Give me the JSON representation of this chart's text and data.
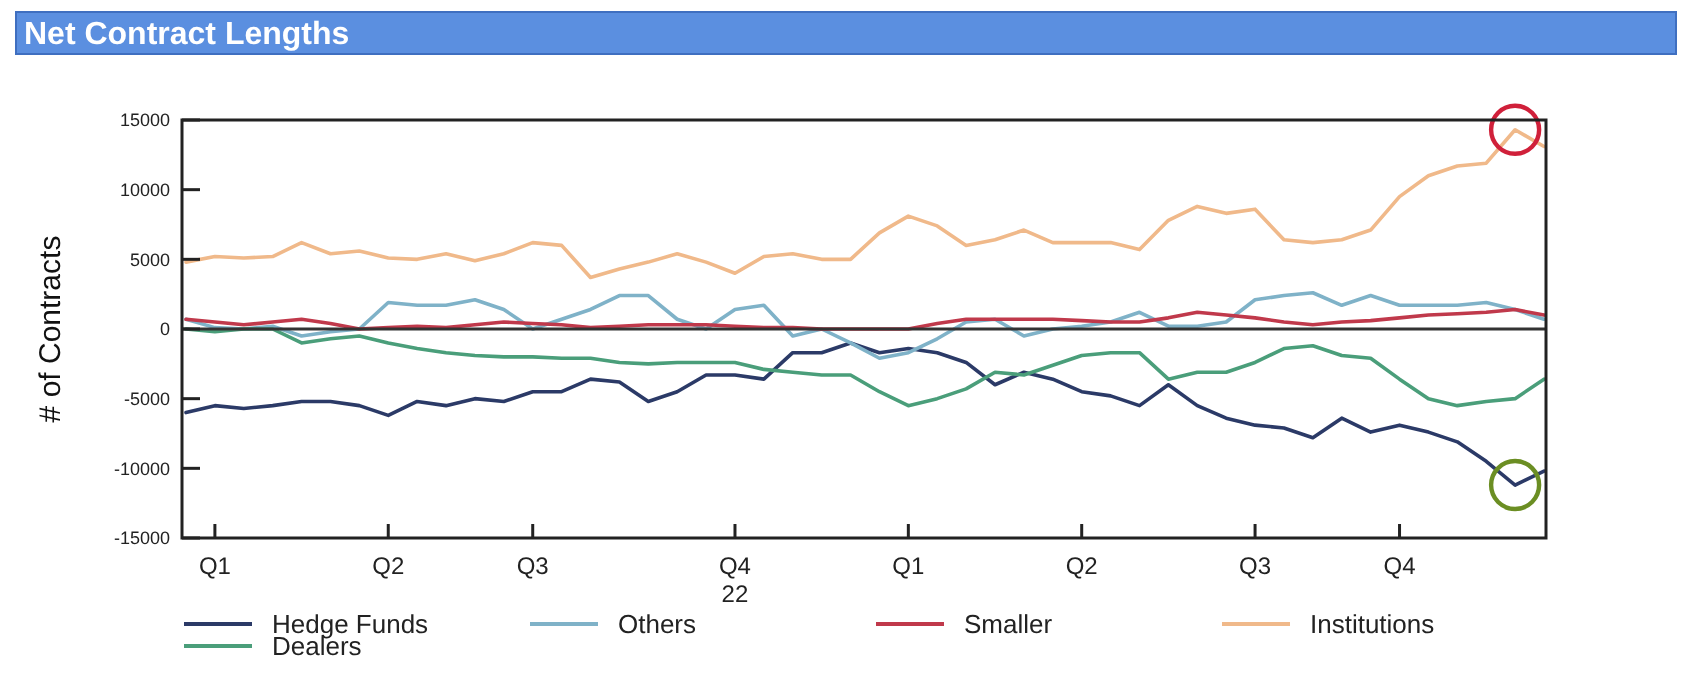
{
  "chart_data": {
    "type": "line",
    "title": "Net Contract Lengths",
    "ylabel": "# of Contracts",
    "categories": [
      null,
      "Q1",
      null,
      null,
      null,
      null,
      null,
      "Q2",
      null,
      null,
      null,
      null,
      "Q3",
      null,
      null,
      null,
      null,
      null,
      null,
      "Q4\n22",
      null,
      null,
      null,
      null,
      null,
      "Q1",
      null,
      null,
      null,
      null,
      null,
      "Q2",
      null,
      null,
      null,
      null,
      null,
      "Q3",
      null,
      null,
      null,
      null,
      "Q4",
      null,
      null,
      null,
      null,
      null
    ],
    "series": [
      {
        "name": "Hedge Funds",
        "color": "#2b3a67",
        "values": [
          -6000,
          -5500,
          -5700,
          -5500,
          -5200,
          -5200,
          -5500,
          -6200,
          -5200,
          -5500,
          -5000,
          -5200,
          -4500,
          -4500,
          -3600,
          -3800,
          -5200,
          -4500,
          -3300,
          -3300,
          -3600,
          -1700,
          -1700,
          -1000,
          -1700,
          -1400,
          -1700,
          -2400,
          -4000,
          -3100,
          -3600,
          -4500,
          -4800,
          -5500,
          -4000,
          -5500,
          -6400,
          -6900,
          -7100,
          -7800,
          -6400,
          -7400,
          -6900,
          -7400,
          -8100,
          -9500,
          -11200,
          -10200
        ]
      },
      {
        "name": "Others",
        "color": "#7fb2c8",
        "values": [
          700,
          100,
          0,
          200,
          -500,
          -200,
          0,
          1900,
          1700,
          1700,
          2100,
          1400,
          0,
          700,
          1400,
          2400,
          2400,
          700,
          0,
          1400,
          1700,
          -500,
          0,
          -1000,
          -2100,
          -1700,
          -700,
          500,
          700,
          -500,
          0,
          200,
          500,
          1200,
          200,
          200,
          500,
          2100,
          2400,
          2600,
          1700,
          2400,
          1700,
          1700,
          1700,
          1900,
          1400,
          700
        ]
      },
      {
        "name": "Smaller",
        "color": "#c0394b",
        "values": [
          700,
          500,
          300,
          500,
          700,
          400,
          0,
          100,
          200,
          100,
          300,
          500,
          400,
          300,
          100,
          200,
          300,
          300,
          300,
          200,
          100,
          100,
          0,
          0,
          0,
          0,
          400,
          700,
          700,
          700,
          700,
          600,
          500,
          500,
          800,
          1200,
          1000,
          800,
          500,
          300,
          500,
          600,
          800,
          1000,
          1100,
          1200,
          1400,
          1000
        ]
      },
      {
        "name": "Institutions",
        "color": "#f0b98a",
        "values": [
          4800,
          5200,
          5100,
          5200,
          6200,
          5400,
          5600,
          5100,
          5000,
          5400,
          4900,
          5400,
          6200,
          6000,
          3700,
          4300,
          4800,
          5400,
          4800,
          4000,
          5200,
          5400,
          5000,
          5000,
          6900,
          8100,
          7400,
          6000,
          6400,
          7100,
          6200,
          6200,
          6200,
          5700,
          7800,
          8800,
          8300,
          8600,
          6400,
          6200,
          6400,
          7100,
          9500,
          11000,
          11700,
          11900,
          14300,
          13100
        ]
      },
      {
        "name": "Dealers",
        "color": "#4a9e7a",
        "values": [
          0,
          -200,
          0,
          0,
          -1000,
          -700,
          -500,
          -1000,
          -1400,
          -1700,
          -1900,
          -2000,
          -2000,
          -2100,
          -2100,
          -2400,
          -2500,
          -2400,
          -2400,
          -2400,
          -2900,
          -3100,
          -3300,
          -3300,
          -4500,
          -5500,
          -5000,
          -4300,
          -3100,
          -3300,
          -2600,
          -1900,
          -1700,
          -1700,
          -3600,
          -3100,
          -3100,
          -2400,
          -1400,
          -1200,
          -1900,
          -2100,
          -3600,
          -5000,
          -5500,
          -5200,
          -5000,
          -3600
        ]
      }
    ],
    "ylim": [
      -15000,
      15000
    ],
    "yticks": [
      -15000,
      -10000,
      -5000,
      0,
      5000,
      10000,
      15000
    ],
    "ref_lines": [
      {
        "axis": "y",
        "value": 0,
        "color": "#333333"
      }
    ],
    "grid": false,
    "legend": "bottom",
    "marker": "none",
    "line_style": "solid"
  }
}
